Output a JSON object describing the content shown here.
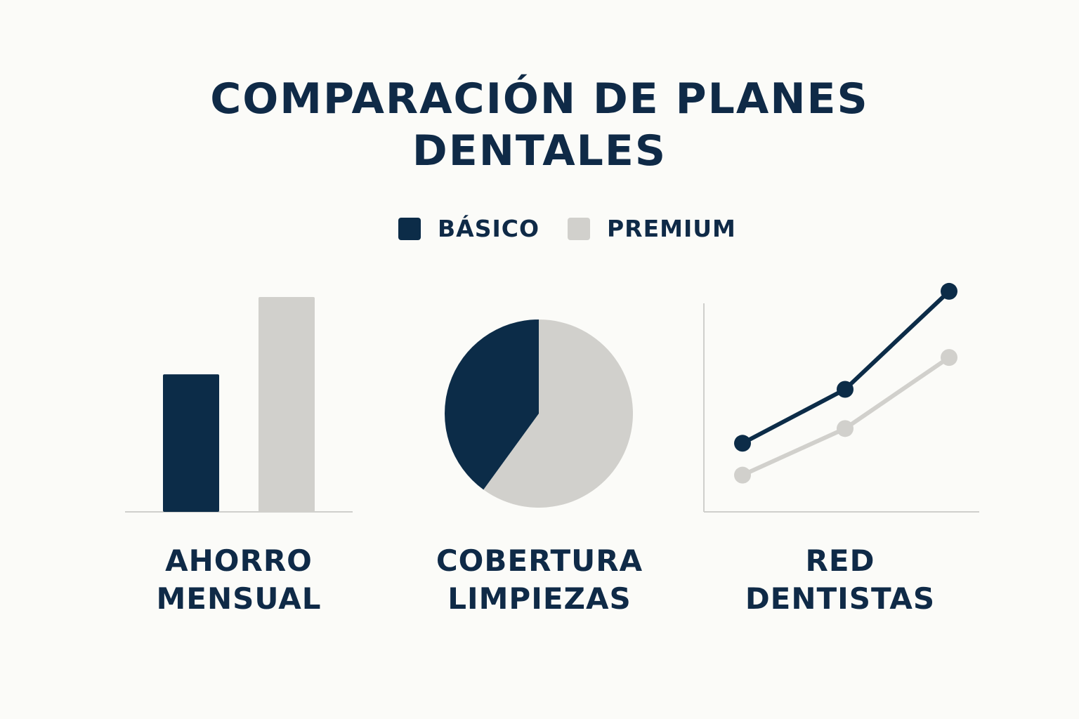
{
  "title_lines": [
    "COMPARACIÓN DE PLANES",
    "DENTALES"
  ],
  "colors": {
    "basico": "#0c2c48",
    "premium": "#d1d0cc",
    "axis": "#cfcfcc",
    "text": "#0f2a47"
  },
  "legend": [
    {
      "label": "BÁSICO",
      "color": "#0c2c48"
    },
    {
      "label": "PREMIUM",
      "color": "#d1d0cc"
    }
  ],
  "chart_data": [
    {
      "type": "bar",
      "label_lines": [
        "AHORRO",
        "MENSUAL"
      ],
      "series": [
        {
          "name": "BÁSICO",
          "values": [
            64
          ]
        },
        {
          "name": "PREMIUM",
          "values": [
            100
          ]
        }
      ],
      "ylim": [
        0,
        100
      ]
    },
    {
      "type": "pie",
      "label_lines": [
        "COBERTURA",
        "LIMPIEZAS"
      ],
      "slices": [
        {
          "name": "BÁSICO",
          "value": 40
        },
        {
          "name": "PREMIUM",
          "value": 60
        }
      ]
    },
    {
      "type": "line",
      "label_lines": [
        "RED",
        "DENTISTAS"
      ],
      "x": [
        1,
        2,
        3
      ],
      "series": [
        {
          "name": "BÁSICO",
          "values": [
            28,
            50,
            90
          ]
        },
        {
          "name": "PREMIUM",
          "values": [
            15,
            34,
            63
          ]
        }
      ],
      "ylim": [
        0,
        100
      ]
    }
  ]
}
